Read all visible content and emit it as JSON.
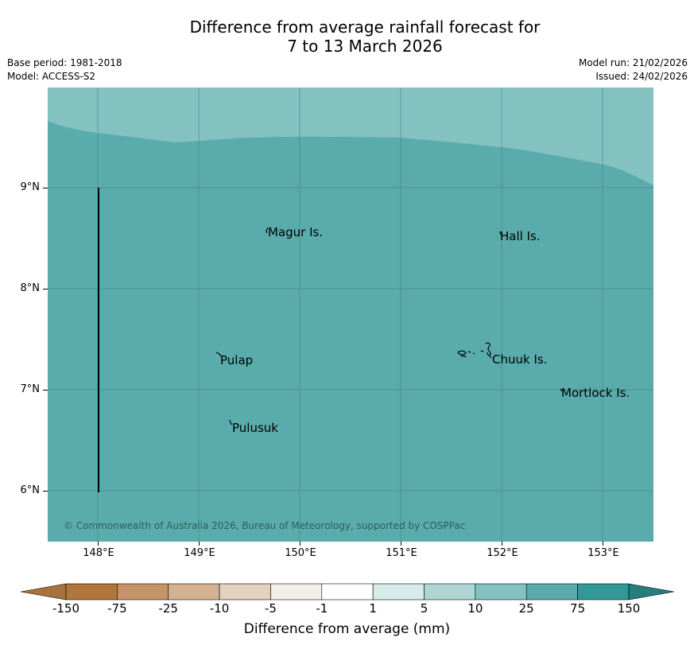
{
  "title_line1": "Difference from average rainfall forecast for",
  "title_line2": "7 to 13 March 2026",
  "meta": {
    "base_period": "Base period: 1981-2018",
    "model": "Model: ACCESS-S2",
    "model_run": "Model run: 21/02/2026",
    "issued": "Issued: 24/02/2026"
  },
  "map": {
    "lat_labels": [
      "9°N",
      "8°N",
      "7°N",
      "6°N"
    ],
    "lon_labels": [
      "148°E",
      "149°E",
      "150°E",
      "151°E",
      "152°E",
      "153°E"
    ],
    "places": {
      "magur": "Magur Is.",
      "hall": "Hall Is.",
      "pulap": "Pulap",
      "chuuk": "Chuuk Is.",
      "mortlock": "Mortlock Is.",
      "pulusuk": "Pulusuk"
    },
    "copyright": "© Commonwealth of Australia 2026, Bureau of Meteorology, supported by COSPPac",
    "colors": {
      "band_10_25": "#84c1c1",
      "band_25_75": "#5aabab"
    }
  },
  "colorbar": {
    "title": "Difference from average (mm)",
    "ticks": [
      "-150",
      "-75",
      "-25",
      "-10",
      "-5",
      "-1",
      "1",
      "5",
      "10",
      "25",
      "75",
      "150"
    ],
    "colors": [
      "#a8723c",
      "#b1763b",
      "#c49468",
      "#d4b291",
      "#e4d2bf",
      "#f2efe9",
      "#ffffff",
      "#d6ecea",
      "#add6d4",
      "#84c1c1",
      "#5aabab",
      "#319a99",
      "#237e7d"
    ]
  }
}
